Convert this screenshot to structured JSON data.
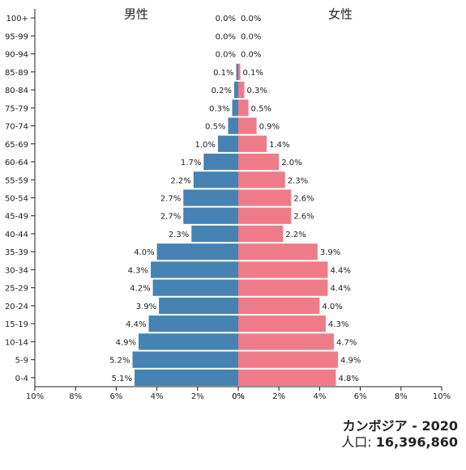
{
  "chart_data": {
    "type": "bar",
    "orientation": "horizontal-pyramid",
    "categories": [
      "0-4",
      "5-9",
      "10-14",
      "15-19",
      "20-24",
      "25-29",
      "30-34",
      "35-39",
      "40-44",
      "45-49",
      "50-54",
      "55-59",
      "60-64",
      "65-69",
      "70-74",
      "75-79",
      "80-84",
      "85-89",
      "90-94",
      "95-99",
      "100+"
    ],
    "series": [
      {
        "name": "男性",
        "color": "#4682b4",
        "values": [
          5.1,
          5.2,
          4.9,
          4.4,
          3.9,
          4.2,
          4.3,
          4.0,
          2.3,
          2.7,
          2.7,
          2.2,
          1.7,
          1.0,
          0.5,
          0.3,
          0.2,
          0.1,
          0.0,
          0.0,
          0.0
        ],
        "labels": [
          "5.1%",
          "5.2%",
          "4.9%",
          "4.4%",
          "3.9%",
          "4.2%",
          "4.3%",
          "4.0%",
          "2.3%",
          "2.7%",
          "2.7%",
          "2.2%",
          "1.7%",
          "1.0%",
          "0.5%",
          "0.3%",
          "0.2%",
          "0.1%",
          "0.0%",
          "0.0%",
          "0.0%"
        ]
      },
      {
        "name": "女性",
        "color": "#f07b88",
        "values": [
          4.8,
          4.9,
          4.7,
          4.3,
          4.0,
          4.4,
          4.4,
          3.9,
          2.2,
          2.6,
          2.6,
          2.3,
          2.0,
          1.4,
          0.9,
          0.5,
          0.3,
          0.1,
          0.0,
          0.0,
          0.0
        ],
        "labels": [
          "4.8%",
          "4.9%",
          "4.7%",
          "4.3%",
          "4.0%",
          "4.4%",
          "4.4%",
          "3.9%",
          "2.2%",
          "2.6%",
          "2.6%",
          "2.3%",
          "2.0%",
          "1.4%",
          "0.9%",
          "0.5%",
          "0.3%",
          "0.1%",
          "0.0%",
          "0.0%",
          "0.0%"
        ]
      }
    ],
    "xlim": [
      0,
      10
    ],
    "xticks_left": [
      "10%",
      "8%",
      "6%",
      "4%",
      "2%",
      "0%"
    ],
    "xticks_right": [
      "0%",
      "2%",
      "4%",
      "6%",
      "8%",
      "10%"
    ],
    "grid": false
  },
  "footer": {
    "country": "カンボジア",
    "year": "2020",
    "population_label": "人口:",
    "population": "16,396,860"
  }
}
